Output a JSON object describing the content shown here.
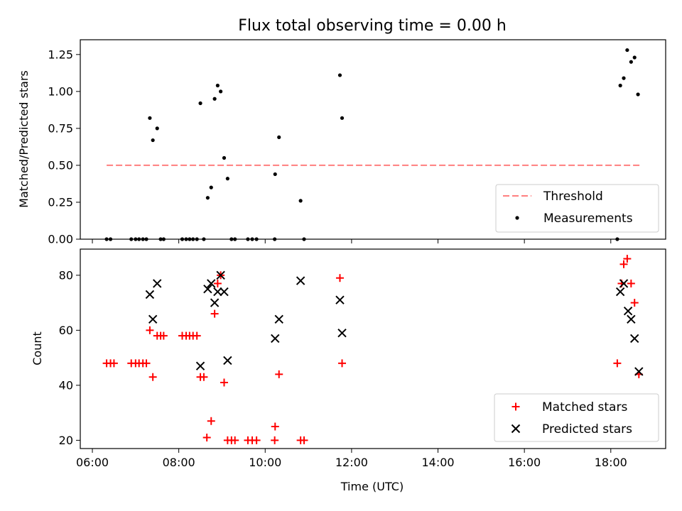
{
  "chart_data": [
    {
      "type": "scatter",
      "title": "Flux total observing time = 0.00 h",
      "xlabel": "",
      "ylabel": "Matched/Predicted stars",
      "xlim_hours": [
        5.72,
        19.27
      ],
      "ylim": [
        0,
        1.35
      ],
      "yticks": [
        0.0,
        0.25,
        0.5,
        0.75,
        1.0,
        1.25
      ],
      "ytick_labels": [
        "0.00",
        "0.25",
        "0.50",
        "0.75",
        "1.00",
        "1.25"
      ],
      "xticks_hours": [
        6,
        8,
        10,
        12,
        14,
        16,
        18
      ],
      "legend_position": "lower-right",
      "threshold": {
        "name": "Threshold",
        "y": 0.5,
        "x_range_hours": [
          6.33,
          18.67
        ],
        "color": "#ff7f7f"
      },
      "series": [
        {
          "name": "Measurements",
          "color": "#000000",
          "points": [
            [
              6.33,
              0
            ],
            [
              6.42,
              0
            ],
            [
              6.9,
              0
            ],
            [
              7.0,
              0
            ],
            [
              7.08,
              0
            ],
            [
              7.17,
              0
            ],
            [
              7.25,
              0
            ],
            [
              7.33,
              0.82
            ],
            [
              7.4,
              0.67
            ],
            [
              7.5,
              0.75
            ],
            [
              7.58,
              0
            ],
            [
              7.65,
              0
            ],
            [
              8.08,
              0
            ],
            [
              8.17,
              0
            ],
            [
              8.25,
              0
            ],
            [
              8.33,
              0
            ],
            [
              8.42,
              0
            ],
            [
              8.5,
              0.92
            ],
            [
              8.58,
              0
            ],
            [
              8.67,
              0.28
            ],
            [
              8.75,
              0.35
            ],
            [
              8.83,
              0.95
            ],
            [
              8.9,
              1.04
            ],
            [
              8.97,
              1.0
            ],
            [
              9.05,
              0.55
            ],
            [
              9.13,
              0.41
            ],
            [
              9.22,
              0
            ],
            [
              9.3,
              0
            ],
            [
              9.6,
              0
            ],
            [
              9.7,
              0
            ],
            [
              9.8,
              0
            ],
            [
              10.22,
              0
            ],
            [
              10.23,
              0.44
            ],
            [
              10.32,
              0.69
            ],
            [
              10.82,
              0.26
            ],
            [
              10.9,
              0
            ],
            [
              11.73,
              1.11
            ],
            [
              11.78,
              0.82
            ],
            [
              18.15,
              0
            ],
            [
              18.22,
              1.04
            ],
            [
              18.3,
              1.09
            ],
            [
              18.38,
              1.28
            ],
            [
              18.47,
              1.2
            ],
            [
              18.55,
              1.23
            ],
            [
              18.63,
              0.98
            ]
          ]
        }
      ]
    },
    {
      "type": "scatter",
      "title": "",
      "xlabel": "Time (UTC)",
      "ylabel": "Count",
      "xlim_hours": [
        5.72,
        19.27
      ],
      "ylim": [
        17,
        89.5
      ],
      "yticks": [
        20,
        40,
        60,
        80
      ],
      "ytick_labels": [
        "20",
        "40",
        "60",
        "80"
      ],
      "xticks_hours": [
        6,
        8,
        10,
        12,
        14,
        16,
        18
      ],
      "xtick_labels": [
        "06:00",
        "08:00",
        "10:00",
        "12:00",
        "14:00",
        "16:00",
        "18:00"
      ],
      "legend_position": "lower-right",
      "series": [
        {
          "name": "Matched stars",
          "marker": "plus",
          "color": "#ff0000",
          "points": [
            [
              6.33,
              48
            ],
            [
              6.42,
              48
            ],
            [
              6.5,
              48
            ],
            [
              6.9,
              48
            ],
            [
              7.0,
              48
            ],
            [
              7.08,
              48
            ],
            [
              7.17,
              48
            ],
            [
              7.25,
              48
            ],
            [
              7.33,
              60
            ],
            [
              7.4,
              43
            ],
            [
              7.5,
              58
            ],
            [
              7.58,
              58
            ],
            [
              7.65,
              58
            ],
            [
              8.08,
              58
            ],
            [
              8.17,
              58
            ],
            [
              8.25,
              58
            ],
            [
              8.33,
              58
            ],
            [
              8.42,
              58
            ],
            [
              8.5,
              43
            ],
            [
              8.58,
              43
            ],
            [
              8.65,
              21
            ],
            [
              8.75,
              27
            ],
            [
              8.83,
              66
            ],
            [
              8.9,
              77
            ],
            [
              8.97,
              80
            ],
            [
              9.05,
              41
            ],
            [
              9.13,
              20
            ],
            [
              9.22,
              20
            ],
            [
              9.3,
              20
            ],
            [
              9.6,
              20
            ],
            [
              9.7,
              20
            ],
            [
              9.8,
              20
            ],
            [
              10.22,
              20
            ],
            [
              10.23,
              25
            ],
            [
              10.32,
              44
            ],
            [
              10.82,
              20
            ],
            [
              10.9,
              20
            ],
            [
              11.73,
              79
            ],
            [
              11.78,
              48
            ],
            [
              18.15,
              48
            ],
            [
              18.25,
              77
            ],
            [
              18.3,
              84
            ],
            [
              18.38,
              86
            ],
            [
              18.47,
              77
            ],
            [
              18.55,
              70
            ],
            [
              18.65,
              44
            ]
          ]
        },
        {
          "name": "Predicted stars",
          "marker": "x",
          "color": "#000000",
          "points": [
            [
              7.33,
              73
            ],
            [
              7.4,
              64
            ],
            [
              7.5,
              77
            ],
            [
              8.5,
              47
            ],
            [
              8.67,
              75
            ],
            [
              8.75,
              77
            ],
            [
              8.83,
              70
            ],
            [
              8.9,
              74
            ],
            [
              8.97,
              80
            ],
            [
              9.05,
              74
            ],
            [
              9.13,
              49
            ],
            [
              10.23,
              57
            ],
            [
              10.32,
              64
            ],
            [
              10.82,
              78
            ],
            [
              11.73,
              71
            ],
            [
              11.78,
              59
            ],
            [
              18.22,
              74
            ],
            [
              18.3,
              77
            ],
            [
              18.4,
              67
            ],
            [
              18.47,
              64
            ],
            [
              18.55,
              57
            ],
            [
              18.65,
              45
            ]
          ]
        }
      ]
    }
  ]
}
